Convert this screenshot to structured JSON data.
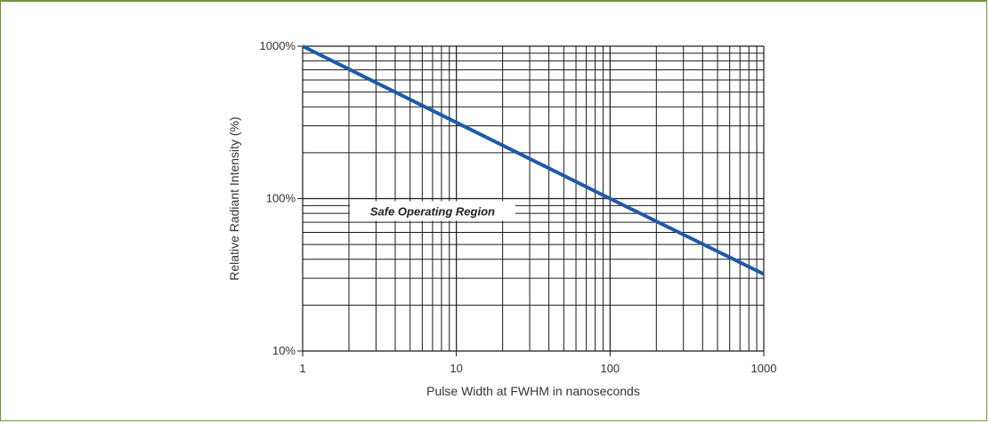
{
  "chart_data": {
    "type": "line",
    "xscale": "log",
    "yscale": "log",
    "xlim": [
      1,
      1000
    ],
    "ylim": [
      10,
      1000
    ],
    "xlabel": "Pulse Width at FWHM in nanoseconds",
    "ylabel": "Relative Radiant Intensity (%)",
    "x_tick_labels": [
      {
        "value": 1,
        "label": "1"
      },
      {
        "value": 10,
        "label": "10"
      },
      {
        "value": 100,
        "label": "100"
      },
      {
        "value": 1000,
        "label": "1000"
      }
    ],
    "y_tick_labels": [
      {
        "value": 10,
        "label": "10%"
      },
      {
        "value": 100,
        "label": "100%"
      },
      {
        "value": 1000,
        "label": "1000%"
      }
    ],
    "grid": true,
    "series": [
      {
        "color": "#1f5aa6",
        "x": [
          1,
          10,
          100,
          1000
        ],
        "y": [
          1000,
          316,
          100,
          32
        ]
      }
    ],
    "annotations": [
      {
        "text": "Safe Operating Region",
        "x": 7,
        "y": 83
      }
    ]
  },
  "colors": {
    "frame": "#6f9a2d",
    "grid": "#1a1a1a",
    "line": "#1f5aa6"
  }
}
